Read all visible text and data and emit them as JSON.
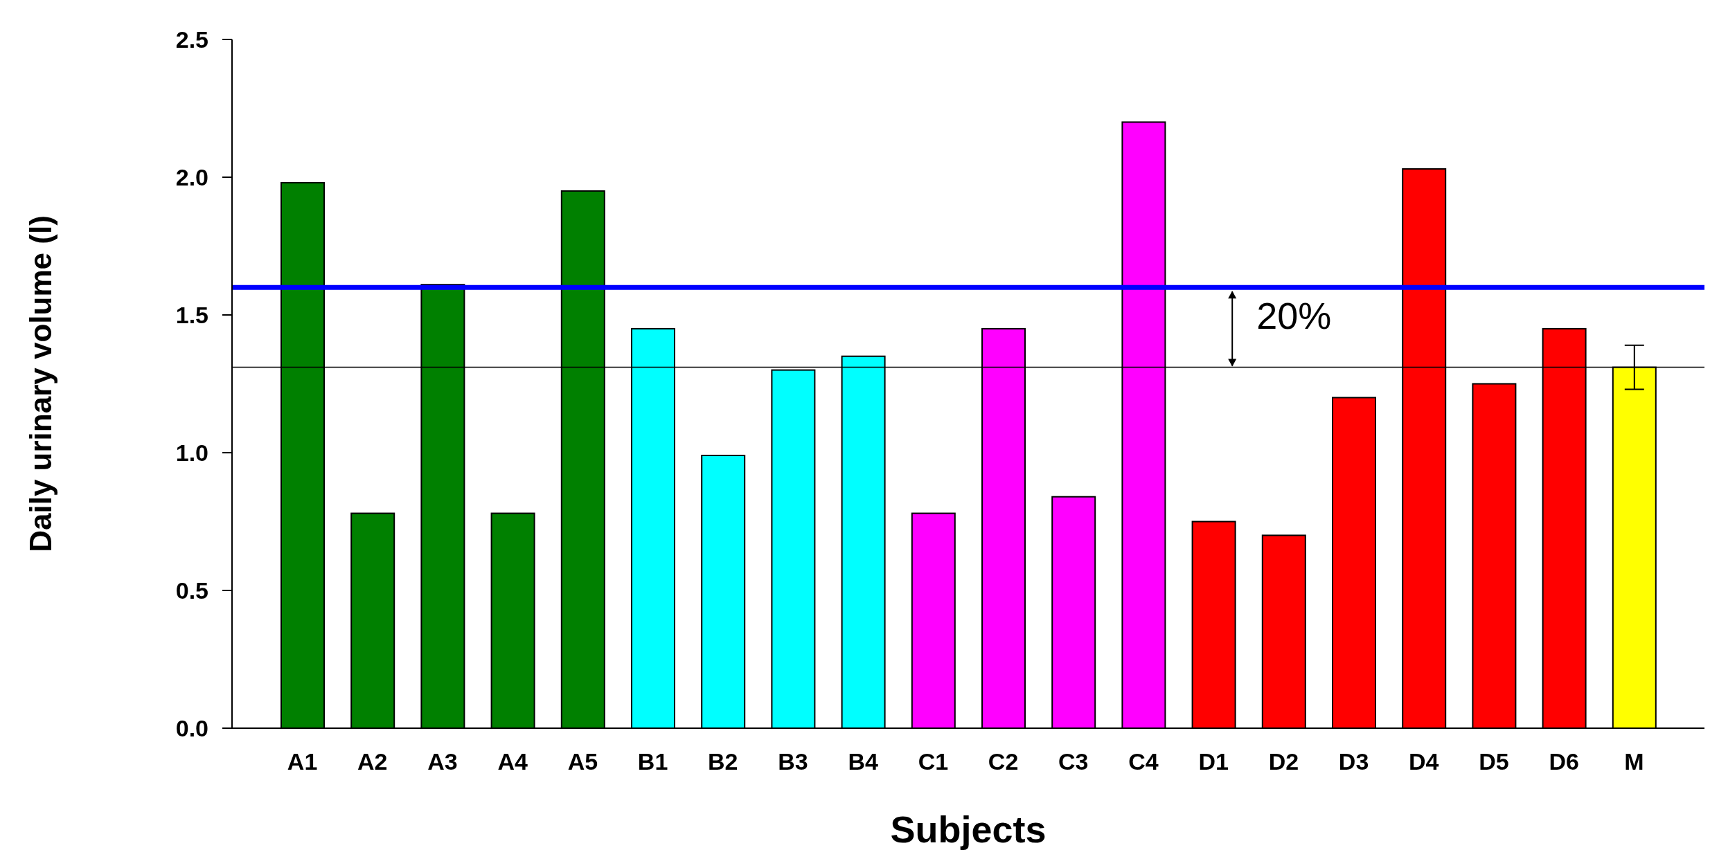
{
  "chart_data": {
    "type": "bar",
    "xlabel": "Subjects",
    "ylabel": "Daily urinary volume (l)",
    "categories": [
      "A1",
      "A2",
      "A3",
      "A4",
      "A5",
      "B1",
      "B2",
      "B3",
      "B4",
      "C1",
      "C2",
      "C3",
      "C4",
      "D1",
      "D2",
      "D3",
      "D4",
      "D5",
      "D6",
      "M"
    ],
    "values": [
      1.98,
      0.78,
      1.61,
      0.78,
      1.95,
      1.45,
      0.99,
      1.3,
      1.35,
      0.78,
      1.45,
      0.84,
      2.2,
      0.75,
      0.7,
      1.2,
      2.03,
      1.25,
      1.45,
      1.31
    ],
    "colors": [
      "#008000",
      "#008000",
      "#008000",
      "#008000",
      "#008000",
      "#00ffff",
      "#00ffff",
      "#00ffff",
      "#00ffff",
      "#ff00ff",
      "#ff00ff",
      "#ff00ff",
      "#ff00ff",
      "#ff0000",
      "#ff0000",
      "#ff0000",
      "#ff0000",
      "#ff0000",
      "#ff0000",
      "#ffff00"
    ],
    "errors": [
      null,
      null,
      null,
      null,
      null,
      null,
      null,
      null,
      null,
      null,
      null,
      null,
      null,
      null,
      null,
      null,
      null,
      null,
      null,
      0.08
    ],
    "ylim": [
      0,
      2.5
    ],
    "yticks": [
      {
        "value": 0,
        "label": "0.0"
      },
      {
        "value": 0.5,
        "label": "0.5"
      },
      {
        "value": 1,
        "label": "1.0"
      },
      {
        "value": 1.5,
        "label": "1.5"
      },
      {
        "value": 2,
        "label": "2.0"
      },
      {
        "value": 2.5,
        "label": "2.5"
      }
    ],
    "ref_lines": [
      {
        "axis": "y",
        "value": 1.6,
        "color": "#0000ff"
      },
      {
        "axis": "y",
        "value": 1.31,
        "color": "#000000"
      }
    ],
    "annotations": [
      "20%"
    ]
  }
}
